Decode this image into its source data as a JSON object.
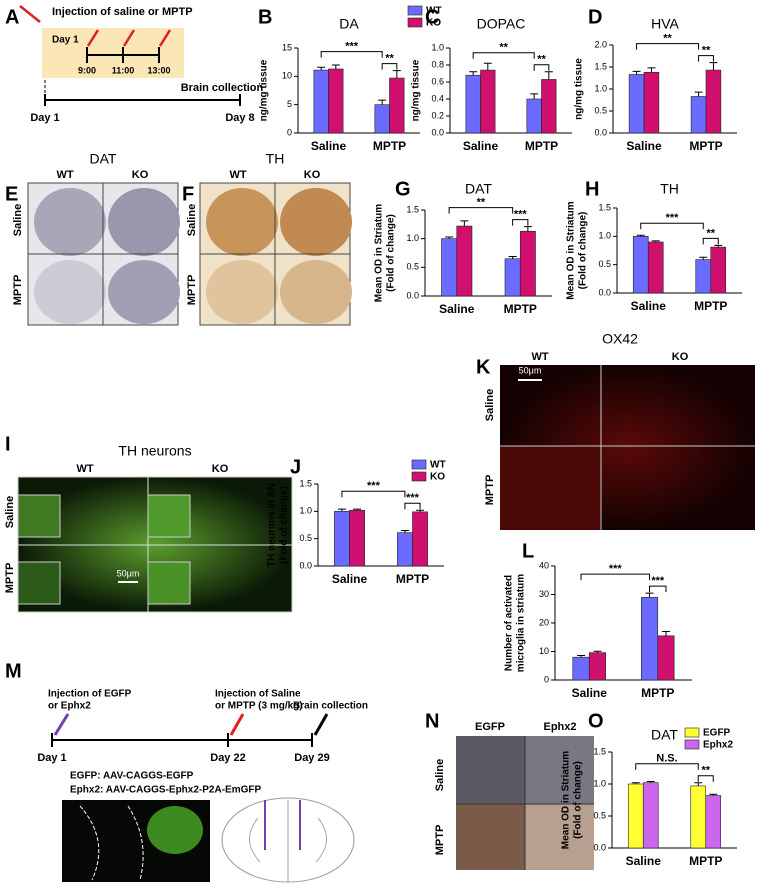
{
  "panel_letters": [
    "A",
    "B",
    "C",
    "D",
    "E",
    "F",
    "G",
    "H",
    "I",
    "J",
    "K",
    "L",
    "M",
    "N",
    "O"
  ],
  "timeline_a": {
    "injection": "Injection of saline or MPTP",
    "day_box": "Day 1",
    "times": [
      "9:00",
      "11:00",
      "13:00"
    ],
    "collection": "Brain collection",
    "start": "Day 1",
    "end": "Day 8"
  },
  "images": [
    {
      "title": "DAT",
      "columns": [
        "WT",
        "KO"
      ],
      "rows": [
        "Saline",
        "MPTP"
      ]
    },
    {
      "title": "TH",
      "columns": [
        "WT",
        "KO"
      ],
      "rows": [
        "Saline",
        "MPTP"
      ]
    },
    {
      "title": "TH neurons",
      "columns": [
        "WT",
        "KO"
      ],
      "rows": [
        "Saline",
        "MPTP"
      ],
      "scale": "50μm"
    },
    {
      "title": "OX42",
      "columns": [
        "WT",
        "KO"
      ],
      "rows": [
        "Saline",
        "MPTP"
      ],
      "scale": "50μm"
    },
    {
      "columns": [
        "EGFP",
        "Ephx2"
      ],
      "rows": [
        "Saline",
        "MPTP"
      ]
    }
  ],
  "timeline_m": {
    "first": [
      "Injection of EGFP",
      "or Ephx2"
    ],
    "second": [
      "Injection of Saline",
      "or MPTP (3 mg/kg)"
    ],
    "collection": "Brain collection",
    "days": [
      "Day 1",
      "Day 22",
      "Day 29"
    ],
    "constructs": [
      "EGFP: AAV-CAGGS-EGFP",
      "Ephx2: AAV-CAGGS-Ephx2-P2A-EmGFP"
    ]
  },
  "chart_data": [
    {
      "type": "bar",
      "title": "DA",
      "y_label": [
        "ng/mg tissue"
      ],
      "categories": [
        "Saline",
        "MPTP"
      ],
      "legend": "top-right",
      "series": [
        {
          "name": "WT",
          "color": "#6b6bff",
          "values": [
            11.1,
            5.0
          ],
          "errors": [
            0.5,
            0.8
          ]
        },
        {
          "name": "KO",
          "color": "#d0106e",
          "values": [
            11.3,
            9.7
          ],
          "errors": [
            0.7,
            1.3
          ]
        }
      ],
      "ylim": [
        0,
        15
      ],
      "yticks": [
        0,
        5,
        10,
        15
      ],
      "significance": [
        "***",
        "**"
      ]
    },
    {
      "type": "bar",
      "title": "DOPAC",
      "y_label": [
        "ng/mg tissue"
      ],
      "categories": [
        "Saline",
        "MPTP"
      ],
      "series": [
        {
          "name": "WT",
          "color": "#6b6bff",
          "values": [
            0.68,
            0.4
          ],
          "errors": [
            0.04,
            0.06
          ]
        },
        {
          "name": "KO",
          "color": "#d0106e",
          "values": [
            0.74,
            0.63
          ],
          "errors": [
            0.08,
            0.09
          ]
        }
      ],
      "ylim": [
        0,
        1
      ],
      "yticks": [
        {
          "value": 0,
          "label": "0.0"
        },
        0.2,
        0.4,
        0.6,
        0.8,
        {
          "value": 1,
          "label": "1.0"
        }
      ],
      "significance": [
        "**",
        "**"
      ]
    },
    {
      "type": "bar",
      "title": "HVA",
      "y_label": [
        "ng/mg tissue"
      ],
      "categories": [
        "Saline",
        "MPTP"
      ],
      "series": [
        {
          "name": "WT",
          "color": "#6b6bff",
          "values": [
            1.33,
            0.83
          ],
          "errors": [
            0.07,
            0.1
          ]
        },
        {
          "name": "KO",
          "color": "#d0106e",
          "values": [
            1.38,
            1.43
          ],
          "errors": [
            0.1,
            0.17
          ]
        }
      ],
      "ylim": [
        0,
        2
      ],
      "yticks": [
        {
          "value": 0,
          "label": "0.0"
        },
        0.5,
        {
          "value": 1,
          "label": "1.0"
        },
        1.5,
        {
          "value": 2,
          "label": "2.0"
        }
      ],
      "significance": [
        "**",
        "**"
      ]
    },
    {
      "type": "bar",
      "title": "DAT",
      "y_label": [
        "Mean OD in Striatum",
        "(Fold of change)"
      ],
      "categories": [
        "Saline",
        "MPTP"
      ],
      "series": [
        {
          "name": "WT",
          "color": "#6b6bff",
          "values": [
            1.0,
            0.65
          ],
          "errors": [
            0.03,
            0.04
          ]
        },
        {
          "name": "KO",
          "color": "#d0106e",
          "values": [
            1.22,
            1.13
          ],
          "errors": [
            0.09,
            0.08
          ]
        }
      ],
      "ylim": [
        0,
        1.5
      ],
      "yticks": [
        {
          "value": 0,
          "label": "0.0"
        },
        0.5,
        {
          "value": 1,
          "label": "1.0"
        },
        1.5
      ],
      "significance": [
        "**",
        "***"
      ]
    },
    {
      "type": "bar",
      "title": "TH",
      "y_label": [
        "Mean OD in Striatum",
        "(Fold of change)"
      ],
      "categories": [
        "Saline",
        "MPTP"
      ],
      "series": [
        {
          "name": "WT",
          "color": "#6b6bff",
          "values": [
            1.0,
            0.59
          ],
          "errors": [
            0.02,
            0.04
          ]
        },
        {
          "name": "KO",
          "color": "#d0106e",
          "values": [
            0.9,
            0.81
          ],
          "errors": [
            0.02,
            0.03
          ]
        }
      ],
      "ylim": [
        0,
        1.5
      ],
      "yticks": [
        {
          "value": 0,
          "label": "0.0"
        },
        0.5,
        {
          "value": 1,
          "label": "1.0"
        },
        1.5
      ],
      "significance": [
        "***",
        "**"
      ]
    },
    {
      "type": "bar",
      "y_label": [
        "TH neurons in SN",
        "(Fold of change)"
      ],
      "categories": [
        "Saline",
        "MPTP"
      ],
      "legend": "top-right",
      "series": [
        {
          "name": "WT",
          "color": "#6b6bff",
          "values": [
            1.0,
            0.61
          ],
          "errors": [
            0.04,
            0.04
          ]
        },
        {
          "name": "KO",
          "color": "#d0106e",
          "values": [
            1.02,
            0.99
          ],
          "errors": [
            0.02,
            0.03
          ]
        }
      ],
      "ylim": [
        0,
        1.5
      ],
      "yticks": [
        {
          "value": 0,
          "label": "0.0"
        },
        0.5,
        {
          "value": 1,
          "label": "1.0"
        },
        1.5
      ],
      "significance": [
        "***",
        "***"
      ]
    },
    {
      "type": "bar",
      "y_label": [
        "Number of activated",
        "microglia in striatum"
      ],
      "categories": [
        "Saline",
        "MPTP"
      ],
      "series": [
        {
          "name": "WT",
          "color": "#6b6bff",
          "values": [
            8,
            29
          ],
          "errors": [
            0.6,
            1.5
          ]
        },
        {
          "name": "KO",
          "color": "#d0106e",
          "values": [
            9.6,
            15.5
          ],
          "errors": [
            0.5,
            1.5
          ]
        }
      ],
      "ylim": [
        0,
        40
      ],
      "yticks": [
        0,
        10,
        20,
        30,
        40
      ],
      "significance": [
        "***",
        "***"
      ]
    },
    {
      "type": "bar",
      "title": "DAT",
      "y_label": [
        "Mean OD in Striatum",
        "(Fold of change)"
      ],
      "categories": [
        "Saline",
        "MPTP"
      ],
      "legend": "top-right",
      "series": [
        {
          "name": "EGFP",
          "color": "#ffff33",
          "values": [
            1.0,
            0.97
          ],
          "errors": [
            0.02,
            0.05
          ]
        },
        {
          "name": "Ephx2",
          "color": "#cc66ee",
          "values": [
            1.02,
            0.82
          ],
          "errors": [
            0.02,
            0.02
          ]
        }
      ],
      "ylim": [
        0,
        1.5
      ],
      "yticks": [
        {
          "value": 0,
          "label": "0.0"
        },
        0.5,
        {
          "value": 1,
          "label": "1.0"
        },
        1.5
      ],
      "significance": [
        "N.S.",
        "**"
      ]
    }
  ]
}
